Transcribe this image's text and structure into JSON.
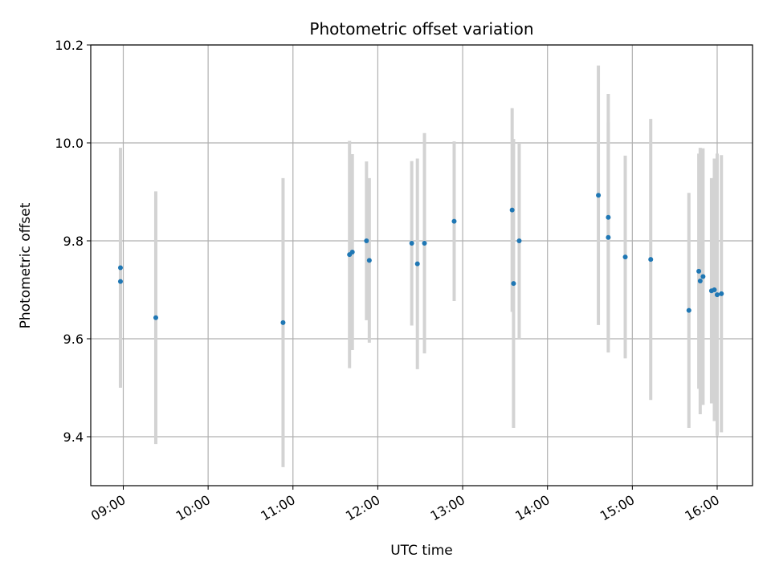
{
  "chart_data": {
    "type": "scatter",
    "title": "Photometric offset variation",
    "xlabel": "UTC time",
    "ylabel": "Photometric offset",
    "x_axis": {
      "unit": "time of day",
      "range": [
        "08:37",
        "16:25"
      ],
      "ticks": [
        "09:00",
        "10:00",
        "11:00",
        "12:00",
        "13:00",
        "14:00",
        "15:00",
        "16:00"
      ],
      "tick_label_rotation": "30 degrees"
    },
    "y_axis": {
      "range": [
        9.3,
        10.2
      ],
      "ticks": [
        "9.4",
        "9.6",
        "9.8",
        "10.0",
        "10.2"
      ]
    },
    "grid": true,
    "legend": "none",
    "colors": {
      "points": "#1f77b4",
      "error_bars": "#d3d3d3",
      "grid": "#b0b0b0"
    },
    "points": [
      {
        "x": "08:58",
        "y": 9.745,
        "yerr": 0.245
      },
      {
        "x": "08:58",
        "y": 9.717,
        "yerr": 0.215
      },
      {
        "x": "09:23",
        "y": 9.643,
        "yerr": 0.258
      },
      {
        "x": "10:53",
        "y": 9.633,
        "yerr": 0.295
      },
      {
        "x": "11:40",
        "y": 9.772,
        "yerr": 0.232
      },
      {
        "x": "11:42",
        "y": 9.777,
        "yerr": 0.2
      },
      {
        "x": "11:52",
        "y": 9.8,
        "yerr": 0.162
      },
      {
        "x": "11:54",
        "y": 9.76,
        "yerr": 0.168
      },
      {
        "x": "12:24",
        "y": 9.795,
        "yerr": 0.168
      },
      {
        "x": "12:28",
        "y": 9.753,
        "yerr": 0.215
      },
      {
        "x": "12:33",
        "y": 9.795,
        "yerr": 0.225
      },
      {
        "x": "12:54",
        "y": 9.84,
        "yerr": 0.163
      },
      {
        "x": "13:35",
        "y": 9.863,
        "yerr": 0.208
      },
      {
        "x": "13:36",
        "y": 9.713,
        "yerr": 0.295
      },
      {
        "x": "13:40",
        "y": 9.8,
        "yerr": 0.2
      },
      {
        "x": "14:36",
        "y": 9.893,
        "yerr": 0.265
      },
      {
        "x": "14:43",
        "y": 9.807,
        "yerr": 0.235
      },
      {
        "x": "14:43",
        "y": 9.848,
        "yerr": 0.252
      },
      {
        "x": "14:55",
        "y": 9.767,
        "yerr": 0.207
      },
      {
        "x": "15:13",
        "y": 9.762,
        "yerr": 0.287
      },
      {
        "x": "15:40",
        "y": 9.658,
        "yerr": 0.24
      },
      {
        "x": "15:47",
        "y": 9.738,
        "yerr": 0.24
      },
      {
        "x": "15:48",
        "y": 9.718,
        "yerr": 0.272
      },
      {
        "x": "15:50",
        "y": 9.727,
        "yerr": 0.262
      },
      {
        "x": "15:56",
        "y": 9.698,
        "yerr": 0.23
      },
      {
        "x": "15:58",
        "y": 9.7,
        "yerr": 0.268
      },
      {
        "x": "16:00",
        "y": 9.69,
        "yerr": 0.288
      },
      {
        "x": "16:03",
        "y": 9.692,
        "yerr": 0.283
      }
    ]
  }
}
